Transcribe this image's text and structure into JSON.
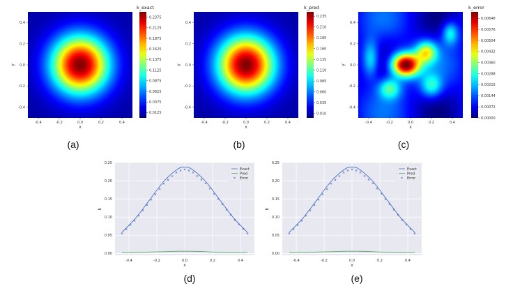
{
  "colors": {
    "exact_line": "#4a6fbf",
    "pred_line": "#55a868",
    "error_marker": "#4a6fbf",
    "plot_bg": "#e8e8f0",
    "grid": "#ffffff"
  },
  "chart_data": [
    {
      "type": "heatmap",
      "label": "(a)",
      "colorbar_title": "k_exact",
      "colormap": "jet",
      "xlabel": "x",
      "ylabel": "y",
      "xlim": [
        -0.5,
        0.5
      ],
      "ylim": [
        -0.5,
        0.5
      ],
      "xticks": [
        "-0.4",
        "-0.2",
        "0.0",
        "0.2",
        "0.4"
      ],
      "yticks": [
        "-0.4",
        "-0.2",
        "0.0",
        "0.2",
        "0.4"
      ],
      "colorbar_ticks": [
        "0.0125",
        "0.0375",
        "0.0625",
        "0.0875",
        "0.1125",
        "0.1375",
        "0.1625",
        "0.1875",
        "0.2125",
        "0.2375"
      ],
      "colorbar_range": [
        0.0,
        0.25
      ],
      "field": "gaussian",
      "peak": [
        0.0,
        0.0
      ]
    },
    {
      "type": "heatmap",
      "label": "(b)",
      "colorbar_title": "k_pred",
      "colormap": "jet",
      "xlabel": "x",
      "ylabel": "y",
      "xlim": [
        -0.5,
        0.5
      ],
      "ylim": [
        -0.5,
        0.5
      ],
      "xticks": [
        "-0.4",
        "-0.2",
        "0.0",
        "0.2",
        "0.4"
      ],
      "yticks": [
        "-0.4",
        "-0.2",
        "0.0",
        "0.2",
        "0.4"
      ],
      "colorbar_ticks": [
        "0.010",
        "0.035",
        "0.060",
        "0.085",
        "0.110",
        "0.135",
        "0.160",
        "0.185",
        "0.210",
        "0.235"
      ],
      "colorbar_range": [
        0.0,
        0.245
      ],
      "field": "gaussian",
      "peak": [
        0.0,
        0.0
      ]
    },
    {
      "type": "heatmap",
      "label": "(c)",
      "colorbar_title": "k_error",
      "colormap": "jet",
      "xlabel": "x",
      "ylabel": "y",
      "xlim": [
        -0.5,
        0.5
      ],
      "ylim": [
        -0.5,
        0.5
      ],
      "xticks": [
        "-0.4",
        "-0.2",
        "0.0",
        "0.2",
        "0.4"
      ],
      "yticks": [
        "-0.4",
        "-0.2",
        "0.0",
        "0.2",
        "0.4"
      ],
      "colorbar_ticks": [
        "0.00000",
        "0.00072",
        "0.00144",
        "0.00216",
        "0.00288",
        "0.00360",
        "0.00432",
        "0.00504",
        "0.00576",
        "0.00648"
      ],
      "colorbar_range": [
        0.0,
        0.0069
      ],
      "field": "error",
      "peak": [
        -0.05,
        0.0
      ]
    },
    {
      "type": "line",
      "label": "(d)",
      "xlabel": "x",
      "ylabel": "k",
      "xlim": [
        -0.5,
        0.5
      ],
      "ylim": [
        -0.005,
        0.25
      ],
      "xticks": [
        "-0.4",
        "-0.2",
        "0.0",
        "0.2",
        "0.4"
      ],
      "yticks": [
        "0.00",
        "0.05",
        "0.10",
        "0.15",
        "0.20",
        "0.25"
      ],
      "legend": "top-right",
      "series": [
        {
          "name": "Exact",
          "style": "line",
          "x": [
            -0.45,
            -0.35,
            -0.25,
            -0.15,
            -0.05,
            0.0,
            0.05,
            0.15,
            0.25,
            0.35,
            0.45
          ],
          "values": [
            0.058,
            0.098,
            0.148,
            0.198,
            0.232,
            0.237,
            0.232,
            0.198,
            0.148,
            0.098,
            0.058
          ]
        },
        {
          "name": "Pred",
          "style": "line",
          "x": [
            -0.45,
            -0.35,
            -0.25,
            -0.15,
            -0.05,
            0.0,
            0.05,
            0.15,
            0.25,
            0.35,
            0.45
          ],
          "values": [
            0.002,
            0.003,
            0.004,
            0.005,
            0.006,
            0.006,
            0.006,
            0.005,
            0.003,
            0.002,
            0.003
          ]
        },
        {
          "name": "Error",
          "style": "marker",
          "x": [
            -0.45,
            -0.35,
            -0.25,
            -0.15,
            -0.05,
            0.0,
            0.05,
            0.15,
            0.25,
            0.35,
            0.45
          ],
          "values": [
            0.055,
            0.094,
            0.143,
            0.192,
            0.226,
            0.231,
            0.226,
            0.193,
            0.145,
            0.096,
            0.055
          ]
        }
      ]
    },
    {
      "type": "line",
      "label": "(e)",
      "xlabel": "x",
      "ylabel": "k",
      "xlim": [
        -0.5,
        0.5
      ],
      "ylim": [
        -0.005,
        0.25
      ],
      "xticks": [
        "-0.4",
        "-0.2",
        "0.0",
        "0.2",
        "0.4"
      ],
      "yticks": [
        "0.00",
        "0.05",
        "0.10",
        "0.15",
        "0.20",
        "0.25"
      ],
      "legend": "top-right",
      "series": [
        {
          "name": "Exact",
          "style": "line",
          "x": [
            -0.45,
            -0.35,
            -0.25,
            -0.15,
            -0.05,
            0.0,
            0.05,
            0.15,
            0.25,
            0.35,
            0.45
          ],
          "values": [
            0.058,
            0.098,
            0.148,
            0.198,
            0.232,
            0.237,
            0.232,
            0.198,
            0.148,
            0.098,
            0.058
          ]
        },
        {
          "name": "Pred",
          "style": "line",
          "x": [
            -0.45,
            -0.35,
            -0.25,
            -0.15,
            -0.05,
            0.0,
            0.05,
            0.15,
            0.25,
            0.35,
            0.45
          ],
          "values": [
            0.002,
            0.003,
            0.004,
            0.005,
            0.006,
            0.006,
            0.006,
            0.005,
            0.003,
            0.002,
            0.003
          ]
        },
        {
          "name": "Error",
          "style": "marker",
          "x": [
            -0.45,
            -0.35,
            -0.25,
            -0.15,
            -0.05,
            0.0,
            0.05,
            0.15,
            0.25,
            0.35,
            0.45
          ],
          "values": [
            0.055,
            0.094,
            0.143,
            0.192,
            0.226,
            0.231,
            0.226,
            0.193,
            0.145,
            0.096,
            0.055
          ]
        }
      ]
    }
  ]
}
